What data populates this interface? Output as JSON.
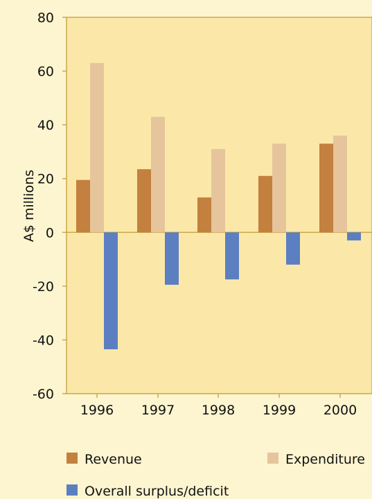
{
  "chart_data": {
    "type": "bar",
    "ylabel": "A$ millions",
    "xlabel": "",
    "title": "",
    "ylim": [
      -60,
      80
    ],
    "yticks": [
      80,
      60,
      40,
      20,
      0,
      -20,
      -40,
      -60
    ],
    "categories": [
      "1996",
      "1997",
      "1998",
      "1999",
      "2000"
    ],
    "series": [
      {
        "name": "Revenue",
        "color": "#c3803e",
        "values": [
          19.5,
          23.5,
          13,
          21,
          33
        ]
      },
      {
        "name": "Expenditure",
        "color": "#e6c49c",
        "values": [
          63,
          43,
          31,
          33,
          36
        ]
      },
      {
        "name": "Overall surplus/deficit",
        "color": "#5b7fc0",
        "values": [
          -43.5,
          -19.5,
          -17.5,
          -12,
          -3
        ]
      }
    ],
    "legend_position": "bottom",
    "grid": false,
    "plot_background": "#fbe8a8",
    "page_background": "#fdf5d0",
    "axis_color": "#c9a84c"
  }
}
